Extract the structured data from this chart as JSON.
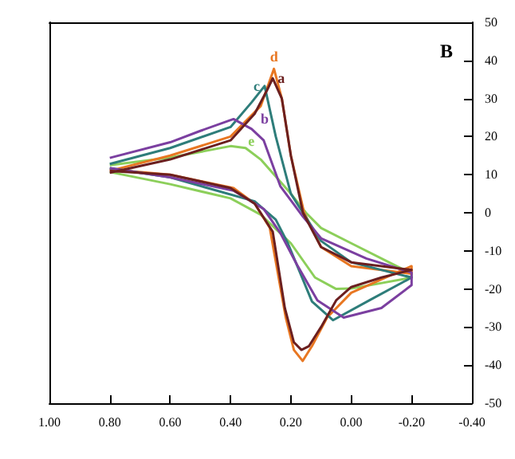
{
  "chart_data": {
    "type": "line",
    "xlim": [
      1.0,
      -0.4
    ],
    "ylim": [
      -50,
      50
    ],
    "xticks": [
      {
        "value": 1.0,
        "label": "1.00"
      },
      {
        "value": 0.8,
        "label": "0.80"
      },
      {
        "value": 0.6,
        "label": "0.60"
      },
      {
        "value": 0.4,
        "label": "0.40"
      },
      {
        "value": 0.2,
        "label": "0.20"
      },
      {
        "value": 0.0,
        "label": "0.00"
      },
      {
        "value": -0.2,
        "label": "-0.20"
      },
      {
        "value": -0.4,
        "label": "-0.40"
      }
    ],
    "yticks": [
      -50,
      -40,
      -30,
      -20,
      -10,
      0,
      10,
      20,
      30,
      40,
      50
    ],
    "grid": false,
    "marker": "none",
    "line_style": "solid",
    "annotations": [
      "B"
    ],
    "series": [
      {
        "name": "a",
        "color": "#6b1f1f",
        "x": [
          0.8,
          0.6,
          0.4,
          0.32,
          0.28,
          0.26,
          0.23,
          0.2,
          0.16,
          0.1,
          0.0,
          -0.2,
          -0.2,
          -0.1,
          0.0,
          0.05,
          0.1,
          0.14,
          0.165,
          0.19,
          0.22,
          0.26,
          0.32,
          0.4,
          0.6,
          0.8
        ],
        "values": [
          10.5,
          14,
          19,
          26,
          32,
          35.3,
          30,
          15,
          0,
          -9,
          -13,
          -15,
          -15,
          -17,
          -19.5,
          -23,
          -30,
          -35,
          -36,
          -34,
          -25,
          -5,
          2.4,
          6.5,
          10,
          11
        ]
      },
      {
        "name": "b",
        "color": "#7b3fa0",
        "x": [
          0.8,
          0.6,
          0.5,
          0.39,
          0.33,
          0.29,
          0.235,
          0.16,
          0.1,
          -0.05,
          -0.2,
          -0.2,
          -0.1,
          0.025,
          0.112,
          0.18,
          0.235,
          0.29,
          0.39,
          0.6,
          0.8
        ],
        "values": [
          14.4,
          18.5,
          21.5,
          24.6,
          22,
          19,
          7,
          -1,
          -6.7,
          -12,
          -15.7,
          -19,
          -25,
          -27.5,
          -23,
          -13.6,
          -5.3,
          1,
          5.8,
          9.3,
          11.7
        ]
      },
      {
        "name": "c",
        "color": "#2e7d7a",
        "x": [
          0.8,
          0.6,
          0.4,
          0.33,
          0.287,
          0.25,
          0.2,
          0.16,
          0.1,
          0.0,
          -0.2,
          -0.2,
          -0.06,
          0.06,
          0.13,
          0.21,
          0.25,
          0.32,
          0.6,
          0.8
        ],
        "values": [
          12.8,
          17,
          22.5,
          29,
          33.3,
          20,
          5,
          0,
          -7.4,
          -13,
          -17,
          -17,
          -23,
          -28.2,
          -23.3,
          -8,
          -1.8,
          3,
          9.3,
          11.7
        ]
      },
      {
        "name": "d",
        "color": "#e87722",
        "x": [
          0.8,
          0.6,
          0.4,
          0.3,
          0.256,
          0.23,
          0.2,
          0.156,
          0.1,
          0.0,
          -0.2,
          -0.2,
          0.0,
          0.08,
          0.13,
          0.161,
          0.19,
          0.217,
          0.27,
          0.32,
          0.39,
          0.6,
          0.8
        ],
        "values": [
          11,
          15,
          20,
          28,
          37.8,
          30,
          15,
          0,
          -9,
          -14,
          -16,
          -14,
          -21,
          -27.5,
          -35,
          -38.9,
          -36,
          -27.5,
          -3.9,
          2.4,
          6.5,
          10,
          11.4
        ]
      },
      {
        "name": "e",
        "color": "#8ccf5a",
        "x": [
          0.8,
          0.6,
          0.4,
          0.35,
          0.3,
          0.2,
          0.15,
          0.1,
          0.0,
          -0.2,
          -0.2,
          0.0,
          0.05,
          0.12,
          0.2,
          0.3,
          0.4,
          0.6,
          0.8
        ],
        "values": [
          12.5,
          14.5,
          17.5,
          17,
          14,
          5,
          0,
          -4,
          -8,
          -16,
          -17,
          -19.9,
          -20,
          -17,
          -8,
          -0.5,
          3.8,
          7.5,
          10.7
        ]
      }
    ]
  }
}
